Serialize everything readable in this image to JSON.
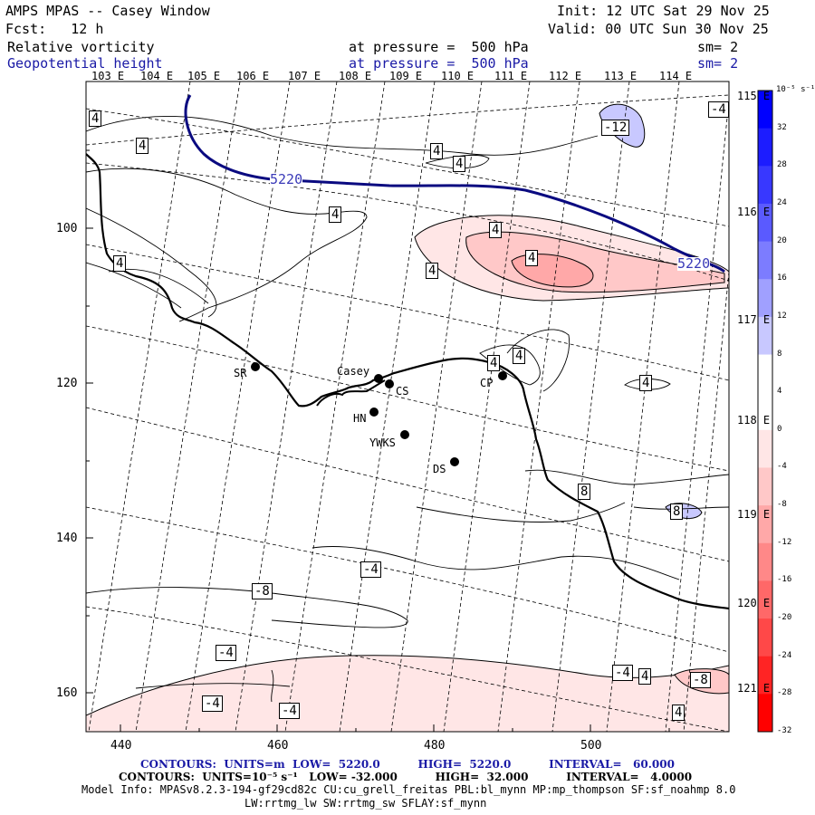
{
  "header": {
    "title": "AMPS MPAS -- Casey Window",
    "forecast": "Fcst:   12 h",
    "init": "Init: 12 UTC Sat 29 Nov 25",
    "valid": "Valid: 00 UTC Sun 30 Nov 25",
    "field1": {
      "name": "Relative vorticity",
      "level": "at pressure =  500 hPa",
      "smooth": "sm= 2"
    },
    "field2": {
      "name": "Geopotential height",
      "level": "at pressure =  500 hPa",
      "smooth": "sm= 2"
    }
  },
  "longitude_labels_top": [
    "103 E",
    "104 E",
    "105 E",
    "106 E",
    "107 E",
    "108 E",
    "109 E",
    "110 E",
    "111 E",
    "112 E",
    "113 E",
    "114 E"
  ],
  "longitude_labels_right": [
    "115 E",
    "116 E",
    "117 E",
    "118 E",
    "119 E",
    "120 E",
    "121 E"
  ],
  "axis": {
    "x_ticks": [
      "440",
      "460",
      "480",
      "500"
    ],
    "y_ticks": [
      "100",
      "120",
      "140",
      "160"
    ]
  },
  "stations": [
    {
      "code": "SR"
    },
    {
      "code": "Casey"
    },
    {
      "code": "CS"
    },
    {
      "code": "HN"
    },
    {
      "code": "YWKS"
    },
    {
      "code": "DS"
    },
    {
      "code": "CP"
    }
  ],
  "contour_labels": {
    "height": [
      "5220",
      "5220"
    ],
    "vorticity": [
      "4",
      "4",
      "4",
      "4",
      "4",
      "4",
      "4",
      "4",
      "4",
      "4",
      "4",
      "4",
      "4",
      "4",
      "8",
      "8",
      "-4",
      "-8",
      "-12",
      "-4",
      "-4",
      "-4",
      "-4",
      "-4",
      "-8"
    ]
  },
  "colorbar": {
    "unit": "10⁻⁵ s⁻¹",
    "labels": [
      "32",
      "28",
      "24",
      "20",
      "16",
      "12",
      "8",
      "4",
      "0",
      "-4",
      "-8",
      "-12",
      "-16",
      "-20",
      "-24",
      "-28",
      "-32"
    ],
    "colors": [
      "#0000ff",
      "#1c1cff",
      "#3838ff",
      "#5a5aff",
      "#7c7cff",
      "#a0a0ff",
      "#c8c8ff",
      "#ffffff",
      "#ffffff",
      "#ffe6e6",
      "#ffc8c8",
      "#ffa8a8",
      "#ff8888",
      "#ff6868",
      "#ff4848",
      "#ff2424",
      "#ff0000"
    ]
  },
  "footer": {
    "line1": "CONTOURS:  UNITS=m  LOW=  5220.0          HIGH=  5220.0          INTERVAL=   60.000",
    "line2": "CONTOURS:  UNITS=10⁻⁵ s⁻¹   LOW= -32.000          HIGH=  32.000          INTERVAL=   4.0000",
    "line3": "Model Info: MPASv8.2.3-194-gf29cd82c CU:cu_grell_freitas PBL:bl_mynn MP:mp_thompson SF:sf_noahmp 8.0",
    "line4": "LW:rrtmg_lw SW:rrtmg_sw SFLAY:sf_mynn"
  },
  "colors": {
    "height_contour": "#0a0a80",
    "coast": "#000000",
    "label_blue": "#1a1aa6"
  }
}
